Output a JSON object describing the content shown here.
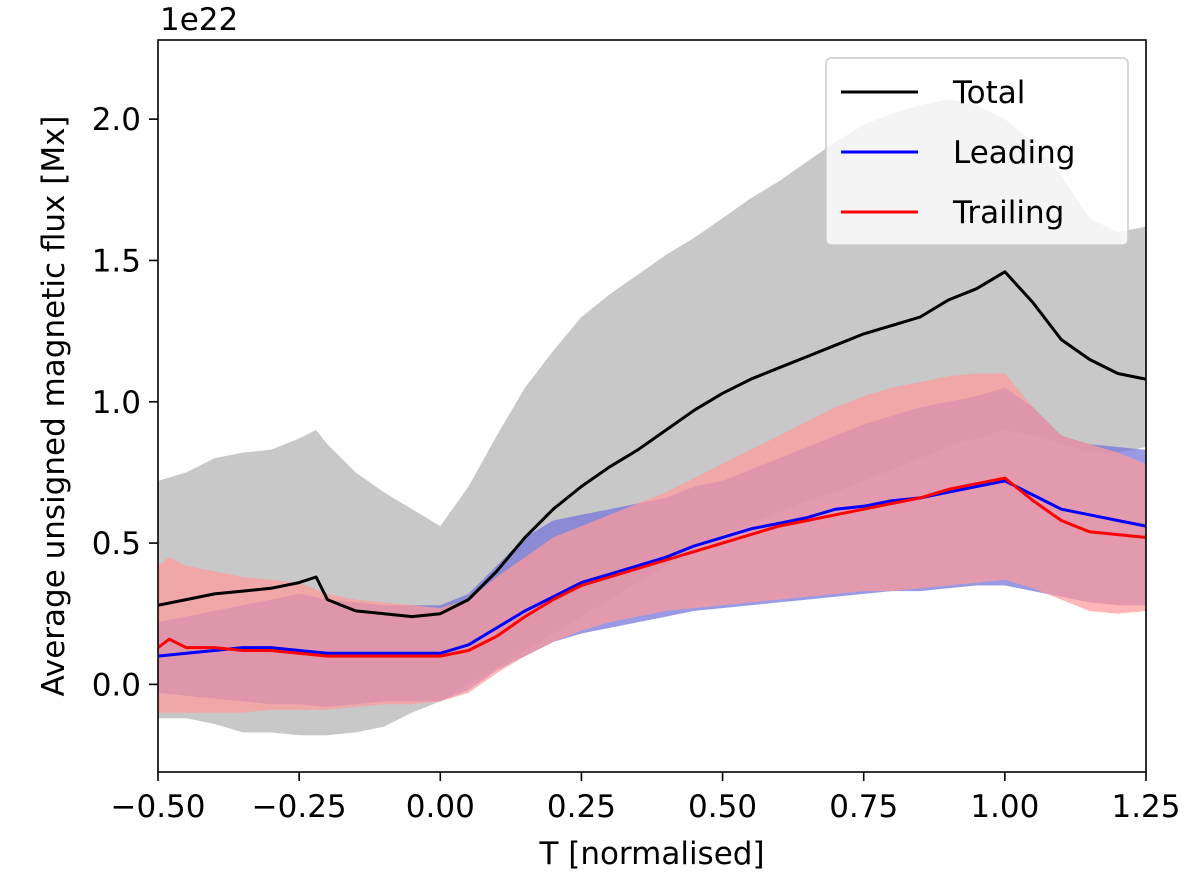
{
  "chart_data": {
    "type": "line",
    "title": "",
    "xlabel": "T [normalised]",
    "ylabel": "Average unsigned magnetic flux [Mx]",
    "y_offset_label": "1e22",
    "y_scale_factor": 1e+22,
    "xlim": [
      -0.5,
      1.25
    ],
    "ylim": [
      -0.31,
      2.28
    ],
    "xticks": [
      -0.5,
      -0.25,
      0.0,
      0.25,
      0.5,
      0.75,
      1.0,
      1.25
    ],
    "xtick_labels": [
      "−0.50",
      "−0.25",
      "0.00",
      "0.25",
      "0.50",
      "0.75",
      "1.00",
      "1.25"
    ],
    "yticks": [
      0.0,
      0.5,
      1.0,
      1.5,
      2.0
    ],
    "ytick_labels": [
      "0.0",
      "0.5",
      "1.0",
      "1.5",
      "2.0"
    ],
    "grid": false,
    "legend_position": "top-right",
    "series": [
      {
        "name": "Total",
        "color": "#000000",
        "band_color": "#b3b3b3",
        "x": [
          -0.5,
          -0.45,
          -0.4,
          -0.35,
          -0.3,
          -0.25,
          -0.22,
          -0.2,
          -0.15,
          -0.1,
          -0.05,
          0.0,
          0.05,
          0.1,
          0.15,
          0.2,
          0.25,
          0.3,
          0.35,
          0.4,
          0.45,
          0.5,
          0.55,
          0.6,
          0.65,
          0.7,
          0.75,
          0.8,
          0.85,
          0.9,
          0.95,
          1.0,
          1.05,
          1.1,
          1.15,
          1.2,
          1.25
        ],
        "mean": [
          0.28,
          0.3,
          0.32,
          0.33,
          0.34,
          0.36,
          0.38,
          0.3,
          0.26,
          0.25,
          0.24,
          0.25,
          0.3,
          0.4,
          0.52,
          0.62,
          0.7,
          0.77,
          0.83,
          0.9,
          0.97,
          1.03,
          1.08,
          1.12,
          1.16,
          1.2,
          1.24,
          1.27,
          1.3,
          1.36,
          1.4,
          1.46,
          1.35,
          1.22,
          1.15,
          1.1,
          1.08
        ],
        "upper": [
          0.72,
          0.75,
          0.8,
          0.82,
          0.83,
          0.87,
          0.9,
          0.85,
          0.75,
          0.68,
          0.62,
          0.56,
          0.7,
          0.88,
          1.05,
          1.18,
          1.3,
          1.38,
          1.45,
          1.52,
          1.58,
          1.65,
          1.72,
          1.78,
          1.85,
          1.92,
          1.98,
          2.02,
          2.05,
          2.07,
          2.05,
          2.0,
          1.92,
          1.8,
          1.65,
          1.6,
          1.62
        ],
        "lower": [
          -0.12,
          -0.12,
          -0.14,
          -0.17,
          -0.17,
          -0.18,
          -0.18,
          -0.18,
          -0.17,
          -0.15,
          -0.1,
          -0.06,
          0.0,
          0.06,
          0.12,
          0.18,
          0.24,
          0.3,
          0.36,
          0.42,
          0.48,
          0.53,
          0.57,
          0.61,
          0.65,
          0.68,
          0.72,
          0.76,
          0.8,
          0.84,
          0.87,
          0.9,
          0.88,
          0.85,
          0.82,
          0.82,
          0.84
        ]
      },
      {
        "name": "Leading",
        "color": "#0000ff",
        "band_color": "#7373d9",
        "x": [
          -0.5,
          -0.45,
          -0.4,
          -0.35,
          -0.3,
          -0.25,
          -0.2,
          -0.15,
          -0.1,
          -0.05,
          0.0,
          0.05,
          0.1,
          0.15,
          0.2,
          0.25,
          0.3,
          0.35,
          0.4,
          0.45,
          0.5,
          0.55,
          0.6,
          0.65,
          0.7,
          0.75,
          0.8,
          0.85,
          0.9,
          0.95,
          1.0,
          1.05,
          1.1,
          1.15,
          1.2,
          1.25
        ],
        "mean": [
          0.1,
          0.11,
          0.12,
          0.13,
          0.13,
          0.12,
          0.11,
          0.11,
          0.11,
          0.11,
          0.11,
          0.14,
          0.2,
          0.26,
          0.31,
          0.36,
          0.39,
          0.42,
          0.45,
          0.49,
          0.52,
          0.55,
          0.57,
          0.59,
          0.62,
          0.63,
          0.65,
          0.66,
          0.68,
          0.7,
          0.72,
          0.67,
          0.62,
          0.6,
          0.58,
          0.56
        ],
        "upper": [
          0.22,
          0.24,
          0.26,
          0.28,
          0.3,
          0.32,
          0.3,
          0.29,
          0.28,
          0.28,
          0.28,
          0.32,
          0.42,
          0.52,
          0.58,
          0.6,
          0.62,
          0.64,
          0.66,
          0.7,
          0.72,
          0.76,
          0.8,
          0.84,
          0.88,
          0.92,
          0.95,
          0.98,
          1.0,
          1.02,
          1.05,
          0.98,
          0.88,
          0.85,
          0.84,
          0.83
        ],
        "lower": [
          -0.03,
          -0.04,
          -0.05,
          -0.06,
          -0.07,
          -0.07,
          -0.08,
          -0.07,
          -0.06,
          -0.06,
          -0.06,
          -0.02,
          0.05,
          0.1,
          0.15,
          0.18,
          0.2,
          0.22,
          0.24,
          0.26,
          0.27,
          0.28,
          0.29,
          0.3,
          0.31,
          0.32,
          0.33,
          0.33,
          0.34,
          0.35,
          0.35,
          0.33,
          0.31,
          0.29,
          0.28,
          0.28
        ]
      },
      {
        "name": "Trailing",
        "color": "#ff0000",
        "band_color": "#ff9a9a",
        "x": [
          -0.5,
          -0.48,
          -0.45,
          -0.4,
          -0.35,
          -0.3,
          -0.25,
          -0.2,
          -0.15,
          -0.1,
          -0.05,
          0.0,
          0.05,
          0.1,
          0.15,
          0.2,
          0.25,
          0.3,
          0.35,
          0.4,
          0.45,
          0.5,
          0.55,
          0.6,
          0.65,
          0.7,
          0.75,
          0.8,
          0.85,
          0.9,
          0.95,
          1.0,
          1.05,
          1.1,
          1.15,
          1.2,
          1.25
        ],
        "mean": [
          0.13,
          0.16,
          0.13,
          0.13,
          0.12,
          0.12,
          0.11,
          0.1,
          0.1,
          0.1,
          0.1,
          0.1,
          0.12,
          0.17,
          0.24,
          0.3,
          0.35,
          0.38,
          0.41,
          0.44,
          0.47,
          0.5,
          0.53,
          0.56,
          0.58,
          0.6,
          0.62,
          0.64,
          0.66,
          0.69,
          0.71,
          0.73,
          0.65,
          0.58,
          0.54,
          0.53,
          0.52
        ],
        "upper": [
          0.42,
          0.45,
          0.42,
          0.4,
          0.38,
          0.37,
          0.36,
          0.32,
          0.3,
          0.29,
          0.28,
          0.27,
          0.3,
          0.38,
          0.45,
          0.52,
          0.56,
          0.6,
          0.64,
          0.68,
          0.73,
          0.78,
          0.83,
          0.88,
          0.93,
          0.98,
          1.02,
          1.05,
          1.07,
          1.09,
          1.1,
          1.1,
          0.98,
          0.88,
          0.85,
          0.82,
          0.78
        ],
        "lower": [
          -0.1,
          -0.1,
          -0.1,
          -0.1,
          -0.1,
          -0.09,
          -0.09,
          -0.09,
          -0.08,
          -0.07,
          -0.07,
          -0.06,
          -0.03,
          0.04,
          0.1,
          0.15,
          0.19,
          0.22,
          0.24,
          0.26,
          0.27,
          0.28,
          0.29,
          0.3,
          0.31,
          0.32,
          0.33,
          0.33,
          0.34,
          0.35,
          0.36,
          0.37,
          0.34,
          0.3,
          0.26,
          0.25,
          0.26
        ]
      }
    ]
  }
}
